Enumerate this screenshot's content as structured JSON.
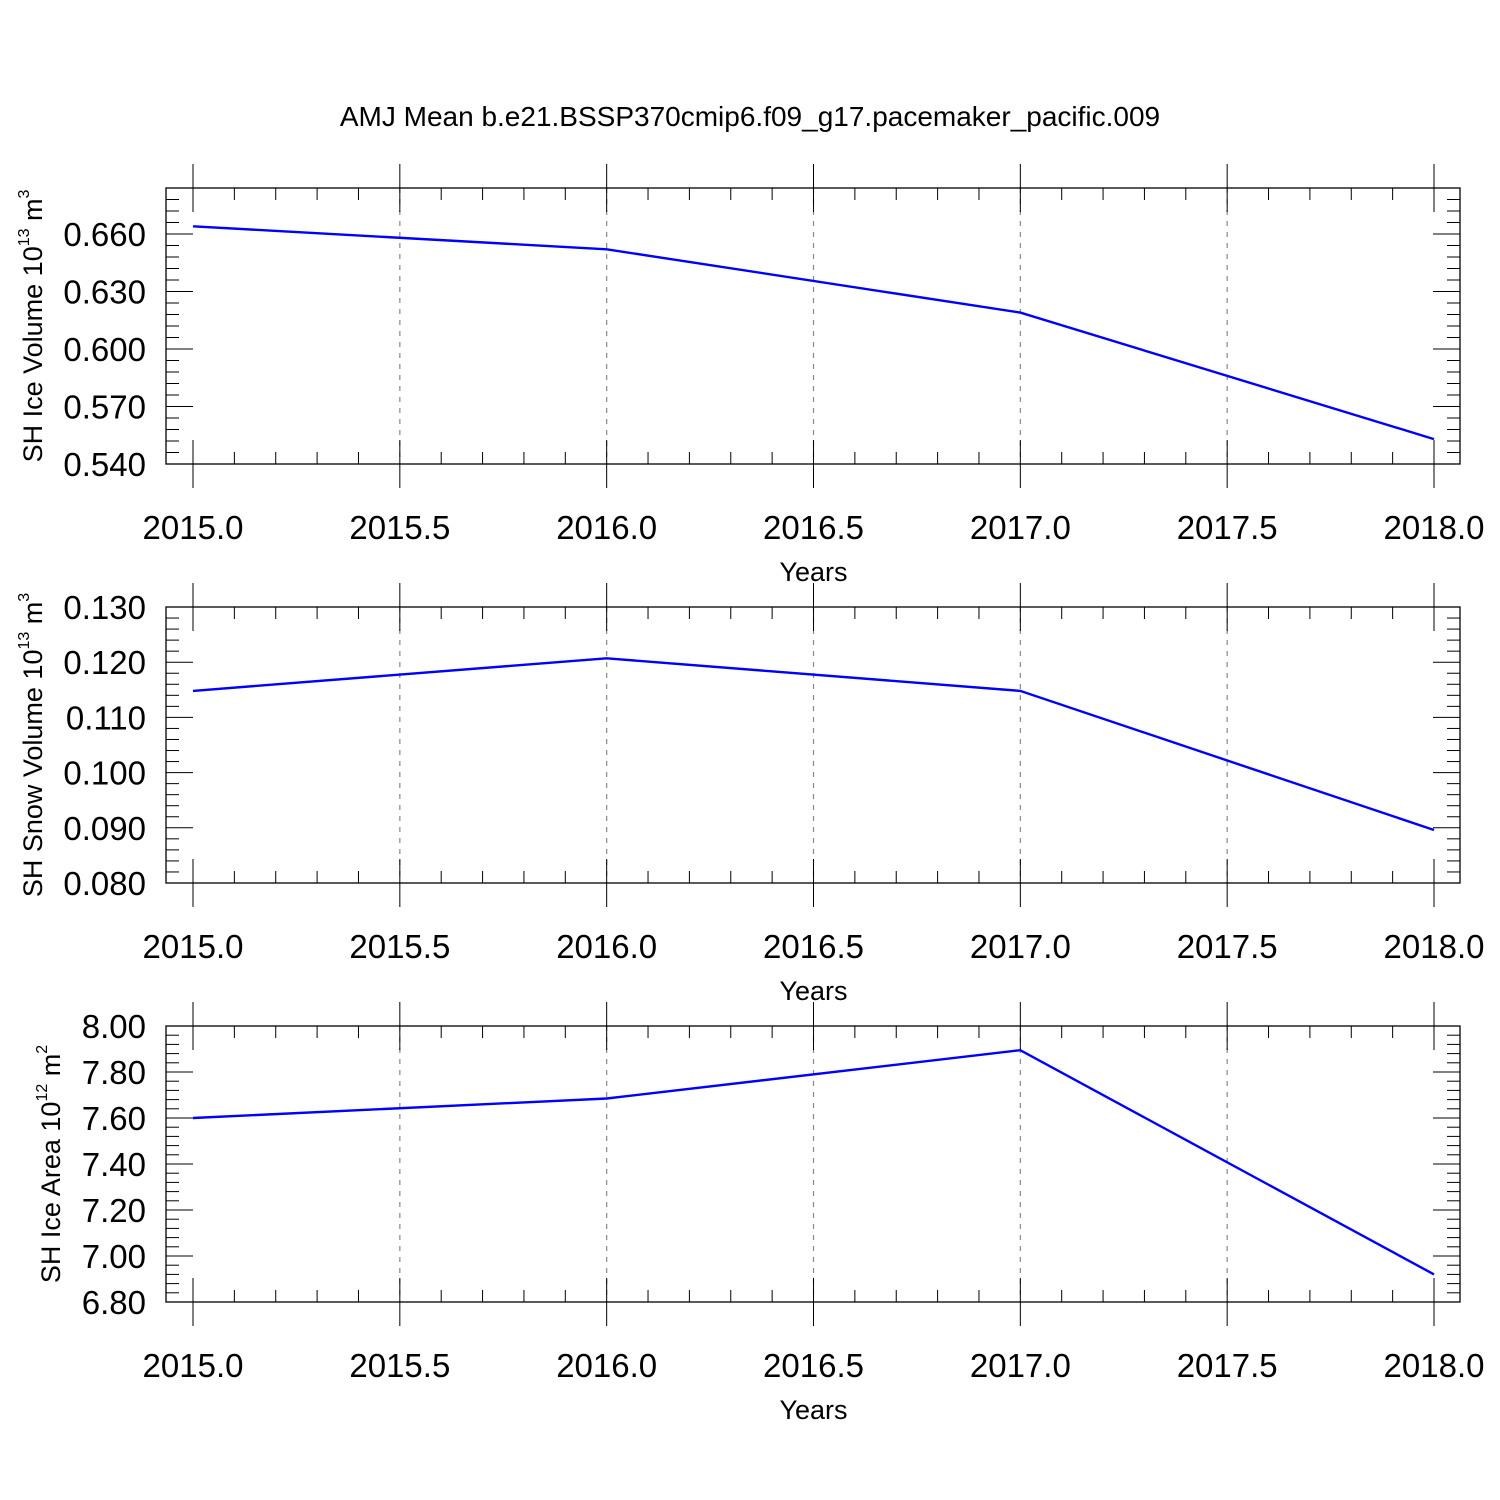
{
  "title": "AMJ Mean b.e21.BSSP370cmip6.f09_g17.pacemaker_pacific.009",
  "chart_data": [
    {
      "type": "line",
      "xlabel": "Years",
      "ylabel": {
        "main": "SH Ice Volume 10",
        "exp": "13",
        "unit": " m",
        "unit_exp": "3"
      },
      "x": [
        2015,
        2016,
        2017,
        2018
      ],
      "values": [
        0.664,
        0.652,
        0.619,
        0.553
      ],
      "xlim": [
        2015.0,
        2018.0
      ],
      "ylim": [
        0.54,
        0.684
      ],
      "xticks": [
        2015.0,
        2015.5,
        2016.0,
        2016.5,
        2017.0,
        2017.5,
        2018.0
      ],
      "xtick_labels": [
        "2015.0",
        "2015.5",
        "2016.0",
        "2016.5",
        "2017.0",
        "2017.5",
        "2018.0"
      ],
      "yticks": [
        0.54,
        0.57,
        0.6,
        0.63,
        0.66
      ],
      "ytick_labels": [
        "0.540",
        "0.570",
        "0.600",
        "0.630",
        "0.660"
      ],
      "ytick_minor_step": 0.006,
      "grid": "vertical dashed",
      "color": "#0000ff"
    },
    {
      "type": "line",
      "xlabel": "Years",
      "ylabel": {
        "main": "SH Snow Volume 10",
        "exp": "13",
        "unit": " m",
        "unit_exp": "3"
      },
      "x": [
        2015,
        2016,
        2017,
        2018
      ],
      "values": [
        0.1148,
        0.1207,
        0.1148,
        0.0896
      ],
      "xlim": [
        2015.0,
        2018.0
      ],
      "ylim": [
        0.08,
        0.13
      ],
      "xticks": [
        2015.0,
        2015.5,
        2016.0,
        2016.5,
        2017.0,
        2017.5,
        2018.0
      ],
      "xtick_labels": [
        "2015.0",
        "2015.5",
        "2016.0",
        "2016.5",
        "2017.0",
        "2017.5",
        "2018.0"
      ],
      "yticks": [
        0.08,
        0.09,
        0.1,
        0.11,
        0.12,
        0.13
      ],
      "ytick_labels": [
        "0.080",
        "0.090",
        "0.100",
        "0.110",
        "0.120",
        "0.130"
      ],
      "ytick_minor_step": 0.002,
      "grid": "vertical dashed",
      "color": "#0000ff"
    },
    {
      "type": "line",
      "xlabel": "Years",
      "ylabel": {
        "main": "SH Ice Area 10",
        "exp": "12",
        "unit": " m",
        "unit_exp": "2"
      },
      "x": [
        2015,
        2016,
        2017,
        2018
      ],
      "values": [
        7.6,
        7.685,
        7.895,
        6.92
      ],
      "xlim": [
        2015.0,
        2018.0
      ],
      "ylim": [
        6.8,
        8.0
      ],
      "xticks": [
        2015.0,
        2015.5,
        2016.0,
        2016.5,
        2017.0,
        2017.5,
        2018.0
      ],
      "xtick_labels": [
        "2015.0",
        "2015.5",
        "2016.0",
        "2016.5",
        "2017.0",
        "2017.5",
        "2018.0"
      ],
      "yticks": [
        6.8,
        7.0,
        7.2,
        7.4,
        7.6,
        7.8,
        8.0
      ],
      "ytick_labels": [
        "6.80",
        "7.00",
        "7.20",
        "7.40",
        "7.60",
        "7.80",
        "8.00"
      ],
      "ytick_minor_step": 0.04,
      "grid": "vertical dashed",
      "color": "#0000ff"
    }
  ]
}
